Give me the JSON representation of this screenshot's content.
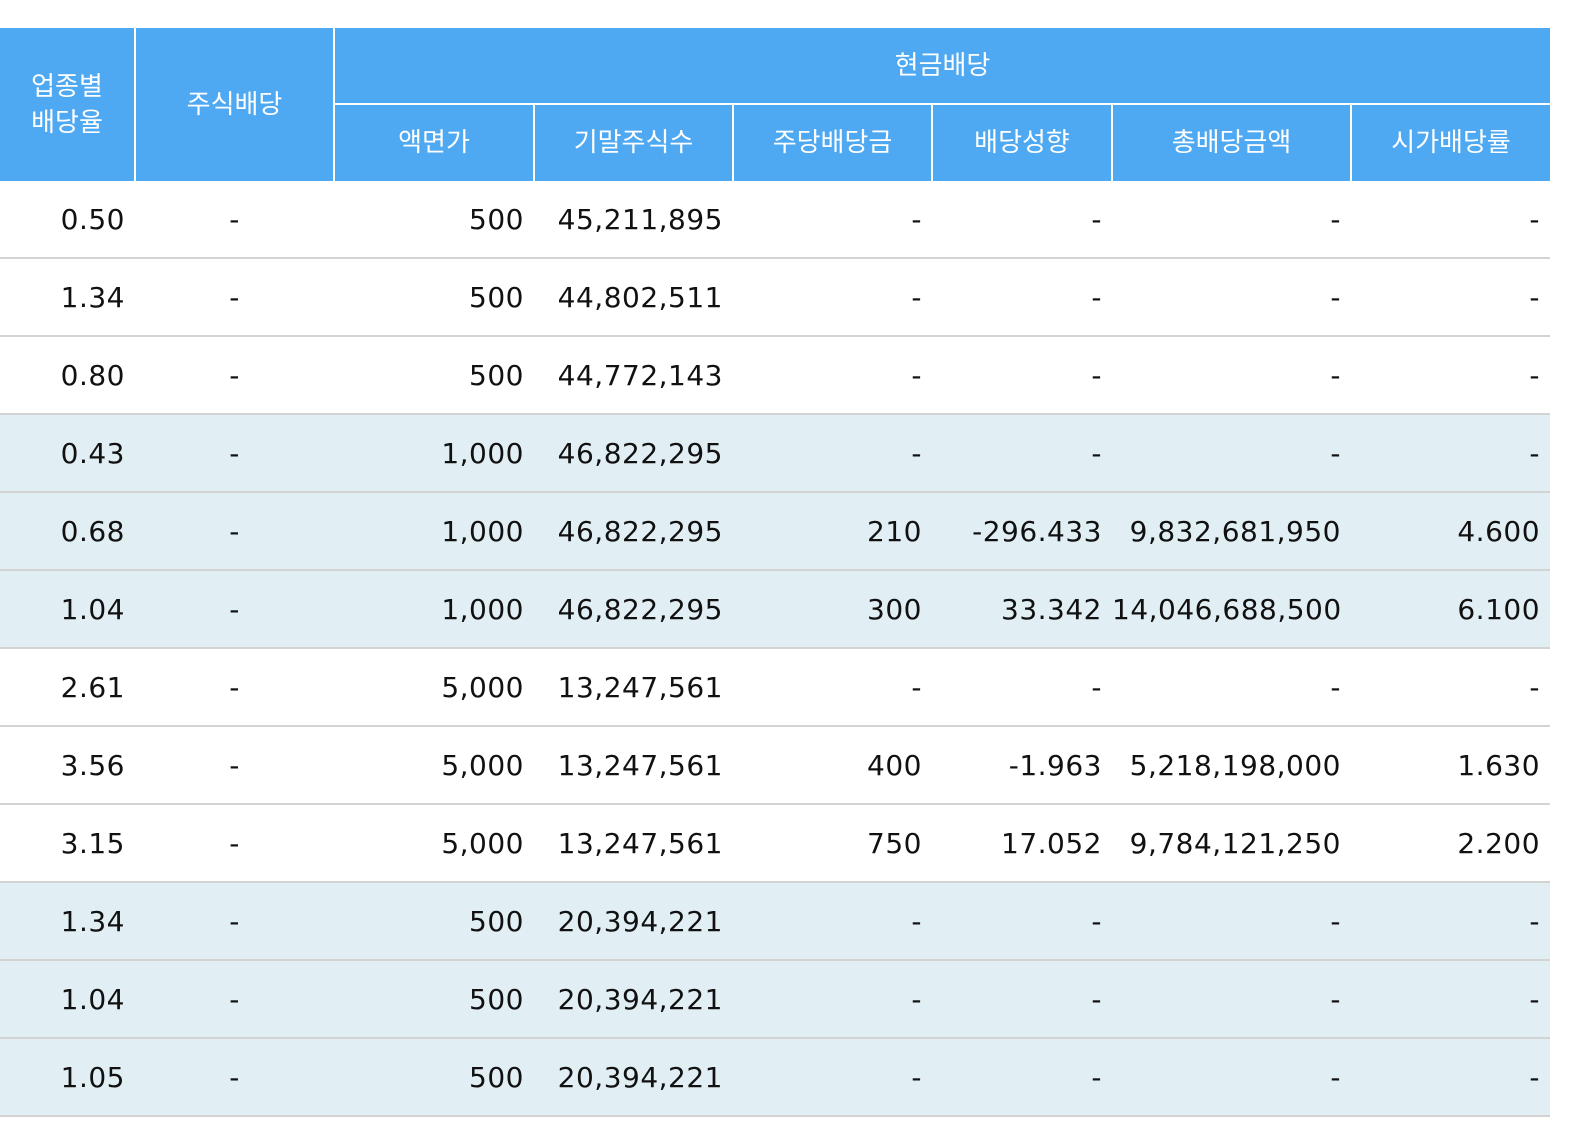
{
  "header": {
    "industry_dividend_rate": "업종별\n배당율",
    "stock_dividend": "주식배당",
    "cash_dividend": "현금배당",
    "sub": [
      "액면가",
      "기말주식수",
      "주당배당금",
      "배당성향",
      "총배당금액",
      "시가배당률"
    ]
  },
  "rows": [
    {
      "shade": "white",
      "cells": [
        "0.50",
        "-",
        "500",
        "45,211,895",
        "-",
        "-",
        "-",
        "-"
      ]
    },
    {
      "shade": "white",
      "cells": [
        "1.34",
        "-",
        "500",
        "44,802,511",
        "-",
        "-",
        "-",
        "-"
      ]
    },
    {
      "shade": "white",
      "cells": [
        "0.80",
        "-",
        "500",
        "44,772,143",
        "-",
        "-",
        "-",
        "-"
      ]
    },
    {
      "shade": "blue",
      "cells": [
        "0.43",
        "-",
        "1,000",
        "46,822,295",
        "-",
        "-",
        "-",
        "-"
      ]
    },
    {
      "shade": "blue",
      "cells": [
        "0.68",
        "-",
        "1,000",
        "46,822,295",
        "210",
        "-296.433",
        "9,832,681,950",
        "4.600"
      ]
    },
    {
      "shade": "blue",
      "cells": [
        "1.04",
        "-",
        "1,000",
        "46,822,295",
        "300",
        "33.342",
        "14,046,688,500",
        "6.100"
      ]
    },
    {
      "shade": "white",
      "cells": [
        "2.61",
        "-",
        "5,000",
        "13,247,561",
        "-",
        "-",
        "-",
        "-"
      ]
    },
    {
      "shade": "white",
      "cells": [
        "3.56",
        "-",
        "5,000",
        "13,247,561",
        "400",
        "-1.963",
        "5,218,198,000",
        "1.630"
      ]
    },
    {
      "shade": "white",
      "cells": [
        "3.15",
        "-",
        "5,000",
        "13,247,561",
        "750",
        "17.052",
        "9,784,121,250",
        "2.200"
      ]
    },
    {
      "shade": "blue",
      "cells": [
        "1.34",
        "-",
        "500",
        "20,394,221",
        "-",
        "-",
        "-",
        "-"
      ]
    },
    {
      "shade": "blue",
      "cells": [
        "1.04",
        "-",
        "500",
        "20,394,221",
        "-",
        "-",
        "-",
        "-"
      ]
    },
    {
      "shade": "blue",
      "cells": [
        "1.05",
        "-",
        "500",
        "20,394,221",
        "-",
        "-",
        "-",
        "-"
      ]
    }
  ],
  "colors": {
    "header_bg": "#4fa9f2",
    "row_white": "#ffffff",
    "row_blue": "#e1eff5",
    "row_border": "#d3d3d3"
  }
}
